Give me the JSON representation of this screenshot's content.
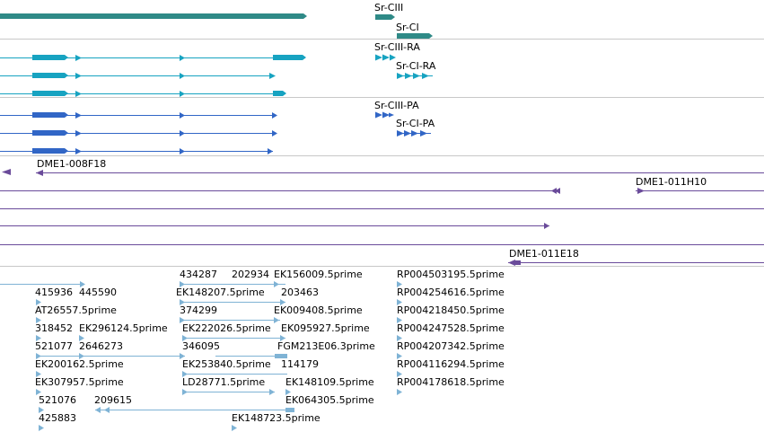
{
  "colors": {
    "gene": "#2f8a87",
    "rna": "#17a3c1",
    "protein": "#3166c6",
    "clone": "#6a4b9a",
    "est": "#7fb3d5",
    "separator": "#c8c8c8"
  },
  "tracks": {
    "gene": {
      "name": "gene-track",
      "labels": [
        "Sr-CIII",
        "Sr-CI"
      ]
    },
    "rna": {
      "name": "rna-track",
      "labels": [
        "Sr-CIII-RA",
        "Sr-CI-RA"
      ]
    },
    "protein": {
      "name": "protein-track",
      "labels": [
        "Sr-CIII-PA",
        "Sr-CI-PA"
      ]
    },
    "clone": {
      "name": "clone-track",
      "labels": [
        "DME1-008F18",
        "DME1-011H10",
        "DME1-011E18"
      ]
    },
    "est": {
      "name": "est-track",
      "labels": [
        "434287",
        "202934",
        "EK156009.5prime",
        "RP004503195.5prime",
        "415936",
        "445590",
        "EK148207.5prime",
        "203463",
        "RP004254616.5prime",
        "AT26557.5prime",
        "374299",
        "EK009408.5prime",
        "RP004218450.5prime",
        "318452",
        "EK296124.5prime",
        "EK222026.5prime",
        "EK095927.5prime",
        "RP004247528.5prime",
        "521077",
        "2646273",
        "346095",
        "FGM213E06.3prime",
        "RP004207342.5prime",
        "EK200162.5prime",
        "EK253840.5prime",
        "114179",
        "RP004116294.5prime",
        "EK307957.5prime",
        "LD28771.5prime",
        "EK148109.5prime",
        "RP004178618.5prime",
        "521076",
        "209615",
        "EK064305.5prime",
        "425883",
        "EK148723.5prime"
      ]
    }
  }
}
